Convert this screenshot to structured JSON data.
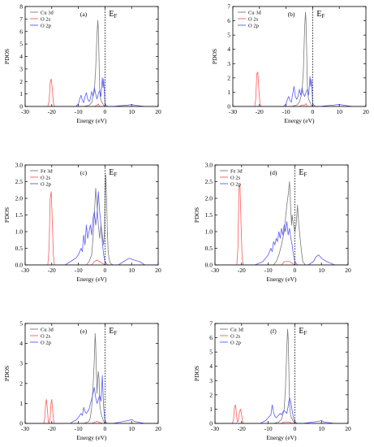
{
  "chart_data": [
    {
      "type": "line",
      "panel_label": "(a)",
      "xlabel": "Energy (eV)",
      "ylabel": "PDOS",
      "xlim": [
        -30,
        20
      ],
      "ylim": [
        0,
        8
      ],
      "xticks": [
        -30,
        -20,
        -10,
        0,
        10,
        20
      ],
      "yticks": [
        0,
        1,
        2,
        3,
        4,
        5,
        6,
        7,
        8
      ],
      "fermi_level": 0,
      "fermi_label": "E",
      "fermi_sub": "F",
      "legend_position": "top-left",
      "series": [
        {
          "name": "Cu 3d",
          "color": "#7a7a7a",
          "x": [
            -30,
            -8,
            -6,
            -5,
            -4.5,
            -4,
            -3.5,
            -3,
            -2.7,
            -2.5,
            -2.2,
            -2,
            -1.8,
            -1.5,
            -1,
            -0.5,
            0,
            20
          ],
          "y": [
            0,
            0,
            0.1,
            0.3,
            0.8,
            1.2,
            3.0,
            5.8,
            6.9,
            6.2,
            3.5,
            1.5,
            0.8,
            0.5,
            0.3,
            0.1,
            0,
            0
          ]
        },
        {
          "name": "O 2s",
          "color": "#ff5a5a",
          "x": [
            -30,
            -21.5,
            -21,
            -20.6,
            -20.2,
            -19.8,
            -19.4,
            -19,
            -4,
            -3,
            -2.5,
            -2,
            20
          ],
          "y": [
            0,
            0,
            0.4,
            1.9,
            2.2,
            1.4,
            0.3,
            0,
            0,
            0.1,
            0.2,
            0,
            0
          ]
        },
        {
          "name": "O 2p",
          "color": "#5a5aff",
          "x": [
            -30,
            -11,
            -10,
            -9.5,
            -9,
            -8.5,
            -8,
            -7.5,
            -7,
            -6.5,
            -6,
            -5.5,
            -5,
            -4.5,
            -4,
            -3.5,
            -3,
            -2.5,
            -2,
            -1.5,
            -1,
            -0.7,
            -0.5,
            -0.2,
            0,
            1,
            3,
            5,
            8,
            10,
            12,
            15,
            20
          ],
          "y": [
            0,
            0,
            0.2,
            0.6,
            0.9,
            0.5,
            0.3,
            0.8,
            1.1,
            0.6,
            0.4,
            0.6,
            1.2,
            0.8,
            1.5,
            1.0,
            0.6,
            1.0,
            1.3,
            0.8,
            2.3,
            1.5,
            2.2,
            1.0,
            0.2,
            0,
            0,
            0.05,
            0.1,
            0.15,
            0.08,
            0,
            0
          ]
        }
      ]
    },
    {
      "type": "line",
      "panel_label": "(b)",
      "xlabel": "Energy (eV)",
      "ylabel": "PDOS",
      "xlim": [
        -30,
        20
      ],
      "ylim": [
        0,
        7
      ],
      "xticks": [
        -30,
        -20,
        -10,
        0,
        10,
        20
      ],
      "yticks": [
        0,
        1,
        2,
        3,
        4,
        5,
        6,
        7
      ],
      "fermi_level": 0,
      "fermi_label": "E",
      "fermi_sub": "F",
      "legend_position": "top-left",
      "series": [
        {
          "name": "Cu 3d",
          "color": "#7a7a7a",
          "x": [
            -30,
            -8,
            -6,
            -5,
            -4.5,
            -4,
            -3.5,
            -3,
            -2.7,
            -2.5,
            -2.2,
            -2,
            -1.8,
            -1.5,
            -1,
            -0.5,
            0,
            20
          ],
          "y": [
            0,
            0,
            0.1,
            0.3,
            0.6,
            1.0,
            2.5,
            5.6,
            6.6,
            6.0,
            3.5,
            1.5,
            0.9,
            0.5,
            0.3,
            0.1,
            0,
            0
          ]
        },
        {
          "name": "O 2s",
          "color": "#ff5a5a",
          "x": [
            -30,
            -21.8,
            -21.4,
            -21,
            -20.6,
            -20.2,
            -19.8,
            -19.4,
            -5,
            -4,
            -3,
            -2.5,
            -2,
            20
          ],
          "y": [
            0,
            0,
            0.5,
            2.3,
            2.4,
            1.1,
            0.2,
            0,
            0,
            0.1,
            0.1,
            0.2,
            0,
            0
          ]
        },
        {
          "name": "O 2p",
          "color": "#5a5aff",
          "x": [
            -30,
            -11,
            -10,
            -9.5,
            -9,
            -8.5,
            -8,
            -7.5,
            -7,
            -6.5,
            -6,
            -5.5,
            -5,
            -4.5,
            -4,
            -3.5,
            -3,
            -2.5,
            -2,
            -1.5,
            -1,
            -0.7,
            -0.5,
            -0.2,
            0,
            1,
            3,
            5,
            8,
            10,
            12,
            15,
            20
          ],
          "y": [
            0,
            0,
            0.2,
            0.5,
            0.7,
            0.4,
            0.3,
            0.9,
            1.4,
            0.7,
            0.5,
            0.7,
            1.2,
            0.8,
            1.3,
            0.9,
            0.7,
            1.0,
            1.2,
            0.8,
            2.1,
            1.4,
            1.9,
            1.0,
            0.2,
            0,
            0,
            0.05,
            0.1,
            0.15,
            0.08,
            0,
            0
          ]
        }
      ]
    },
    {
      "type": "line",
      "panel_label": "(c)",
      "xlabel": "Energy (eV)",
      "ylabel": "PDOS",
      "xlim": [
        -30,
        20
      ],
      "ylim": [
        0,
        3.0
      ],
      "xticks": [
        -30,
        -20,
        -10,
        0,
        10,
        20
      ],
      "yticks": [
        0.0,
        0.5,
        1.0,
        1.5,
        2.0,
        2.5,
        3.0
      ],
      "fermi_level": 0,
      "fermi_label": "E",
      "fermi_sub": "F",
      "legend_position": "top-left",
      "series": [
        {
          "name": "Fe 3d",
          "color": "#7a7a7a",
          "x": [
            -30,
            -7,
            -6,
            -5,
            -4.5,
            -4,
            -3.5,
            -3,
            -2.5,
            -2,
            -1.5,
            -1,
            -0.5,
            -0.2,
            0,
            0.3,
            0.6,
            0.9,
            1.2,
            1.5,
            2,
            3,
            20
          ],
          "y": [
            0,
            0,
            0.1,
            0.3,
            0.8,
            1.5,
            2.3,
            1.8,
            1.2,
            0.8,
            1.2,
            0.9,
            0.6,
            1.0,
            2.0,
            2.7,
            2.0,
            1.0,
            0.4,
            0.2,
            0.05,
            0,
            0
          ]
        },
        {
          "name": "O 2s",
          "color": "#ff5a5a",
          "x": [
            -30,
            -21.5,
            -21,
            -20.6,
            -20.2,
            -19.8,
            -19.4,
            -19,
            -5,
            -4,
            -3,
            -2,
            -1,
            0,
            20
          ],
          "y": [
            0,
            0,
            0.5,
            2.0,
            2.2,
            1.3,
            0.3,
            0,
            0,
            0.1,
            0.15,
            0.1,
            0.05,
            0,
            0
          ]
        },
        {
          "name": "O 2p",
          "color": "#5a5aff",
          "x": [
            -30,
            -15,
            -13,
            -12,
            -11,
            -10,
            -9,
            -8.5,
            -8,
            -7.5,
            -7,
            -6.5,
            -6,
            -5.5,
            -5,
            -4.5,
            -4,
            -3.5,
            -3,
            -2.5,
            -2,
            -1.5,
            -1,
            -0.5,
            0,
            1,
            3,
            5,
            7,
            9,
            11,
            13,
            15,
            20
          ],
          "y": [
            0,
            0,
            0.1,
            0.15,
            0.2,
            0.3,
            0.5,
            0.4,
            0.9,
            0.6,
            1.2,
            0.8,
            1.0,
            1.2,
            0.9,
            1.4,
            1.6,
            1.2,
            1.5,
            2.2,
            1.6,
            1.2,
            0.7,
            0.3,
            0.1,
            0,
            0,
            0,
            0.1,
            0.2,
            0.15,
            0.1,
            0,
            0
          ]
        }
      ]
    },
    {
      "type": "line",
      "panel_label": "(d)",
      "xlabel": "Energy (eV)",
      "ylabel": "PDOS",
      "xlim": [
        -30,
        20
      ],
      "ylim": [
        0,
        3.0
      ],
      "xticks": [
        -30,
        -20,
        -10,
        0,
        10,
        20
      ],
      "yticks": [
        0.0,
        0.5,
        1.0,
        1.5,
        2.0,
        2.5,
        3.0
      ],
      "fermi_level": 0,
      "fermi_label": "E",
      "fermi_sub": "F",
      "legend_position": "top-left",
      "series": [
        {
          "name": "Fe 3d",
          "color": "#7a7a7a",
          "x": [
            -30,
            -8,
            -7,
            -6,
            -5,
            -4,
            -3.5,
            -3,
            -2.5,
            -2,
            -1.8,
            -1.5,
            -1.2,
            -1,
            -0.5,
            0,
            0.5,
            1,
            1.5,
            2,
            2.5,
            3,
            4,
            20
          ],
          "y": [
            0,
            0,
            0.1,
            0.3,
            0.6,
            1.0,
            1.4,
            1.8,
            2.1,
            2.5,
            2.2,
            1.6,
            1.2,
            1.5,
            1.2,
            1.0,
            1.2,
            1.8,
            1.2,
            0.8,
            0.4,
            0.1,
            0,
            0
          ]
        },
        {
          "name": "O 2s",
          "color": "#ff5a5a",
          "x": [
            -30,
            -21.8,
            -21.4,
            -21,
            -20.6,
            -20.2,
            -19.8,
            -19.4,
            -5,
            -4,
            -3,
            -2,
            -1,
            0,
            20
          ],
          "y": [
            0,
            0,
            0.5,
            2.3,
            2.4,
            1.2,
            0.2,
            0,
            0,
            0.1,
            0.1,
            0.1,
            0.05,
            0,
            0
          ]
        },
        {
          "name": "O 2p",
          "color": "#5a5aff",
          "x": [
            -30,
            -15,
            -12,
            -11,
            -10,
            -9,
            -8.5,
            -8,
            -7.5,
            -7,
            -6.5,
            -6,
            -5.5,
            -5,
            -4.5,
            -4,
            -3.5,
            -3,
            -2.5,
            -2,
            -1.5,
            -1,
            -0.5,
            0,
            1,
            3,
            5,
            7,
            8,
            9,
            10,
            12,
            15,
            20
          ],
          "y": [
            0,
            0,
            0.1,
            0.2,
            0.3,
            0.5,
            0.4,
            0.7,
            0.6,
            0.8,
            0.7,
            1.0,
            0.8,
            1.1,
            0.9,
            1.2,
            1.0,
            1.3,
            0.9,
            1.1,
            0.8,
            0.6,
            0.3,
            0.1,
            0,
            0,
            0,
            0.1,
            0.25,
            0.3,
            0.2,
            0.1,
            0,
            0
          ]
        }
      ]
    },
    {
      "type": "line",
      "panel_label": "(e)",
      "xlabel": "Energy (eV)",
      "ylabel": "PDOS",
      "xlim": [
        -30,
        20
      ],
      "ylim": [
        0,
        5
      ],
      "xticks": [
        -30,
        -20,
        -10,
        0,
        10,
        20
      ],
      "yticks": [
        0,
        1,
        2,
        3,
        4,
        5
      ],
      "fermi_level": 0,
      "fermi_label": "E",
      "fermi_sub": "F",
      "legend_position": "top-left",
      "series": [
        {
          "name": "Cu 3d",
          "color": "#7a7a7a",
          "x": [
            -30,
            -8,
            -6,
            -5.5,
            -5,
            -4.5,
            -4,
            -3.7,
            -3.5,
            -3.2,
            -3,
            -2.8,
            -2.5,
            -2.2,
            -2,
            -1.5,
            -1,
            -0.5,
            0,
            20
          ],
          "y": [
            0,
            0,
            0.1,
            0.3,
            0.8,
            1.8,
            3.2,
            4.5,
            4.0,
            2.5,
            1.5,
            2.0,
            2.6,
            2.2,
            1.0,
            0.5,
            0.3,
            0.1,
            0,
            0
          ]
        },
        {
          "name": "O 2s",
          "color": "#ff5a5a",
          "x": [
            -30,
            -23,
            -22.6,
            -22.3,
            -22,
            -21.7,
            -21.3,
            -21,
            -20.6,
            -20.3,
            -20,
            -19.7,
            -19.3,
            -19,
            -5,
            -4,
            -3,
            -2,
            -1,
            20
          ],
          "y": [
            0,
            0,
            0.3,
            1.0,
            1.2,
            0.8,
            0.1,
            0,
            0.3,
            1.0,
            1.2,
            0.7,
            0.1,
            0,
            0,
            0.05,
            0.1,
            0.05,
            0,
            0
          ]
        },
        {
          "name": "O 2p",
          "color": "#5a5aff",
          "x": [
            -30,
            -13,
            -12,
            -11,
            -10,
            -9,
            -8.5,
            -8,
            -7.5,
            -7,
            -6.5,
            -6,
            -5.5,
            -5,
            -4.5,
            -4,
            -3.5,
            -3,
            -2.5,
            -2,
            -1.5,
            -1,
            -0.5,
            0,
            1,
            3,
            5,
            7,
            9,
            10,
            11,
            13,
            15,
            20
          ],
          "y": [
            0,
            0,
            0.1,
            0.15,
            0.3,
            0.5,
            0.4,
            0.8,
            0.6,
            0.5,
            0.6,
            0.7,
            1.0,
            1.2,
            1.5,
            1.8,
            1.3,
            1.0,
            1.2,
            1.4,
            1.1,
            2.4,
            0.8,
            0.1,
            0,
            0,
            0.05,
            0.1,
            0.15,
            0.2,
            0.1,
            0.05,
            0,
            0
          ]
        }
      ]
    },
    {
      "type": "line",
      "panel_label": "(f)",
      "xlabel": "Energy (eV)",
      "ylabel": "PDOS",
      "xlim": [
        -30,
        20
      ],
      "ylim": [
        0,
        7
      ],
      "xticks": [
        -30,
        -20,
        -10,
        0,
        10,
        20
      ],
      "yticks": [
        0,
        1,
        2,
        3,
        4,
        5,
        6,
        7
      ],
      "fermi_level": 0,
      "fermi_label": "E",
      "fermi_sub": "F",
      "legend_position": "top-left",
      "series": [
        {
          "name": "Cu 3d",
          "color": "#7a7a7a",
          "x": [
            -30,
            -8,
            -6,
            -5,
            -4.5,
            -4,
            -3.5,
            -3,
            -2.7,
            -2.5,
            -2.2,
            -2,
            -1.8,
            -1.5,
            -1,
            -0.5,
            0,
            20
          ],
          "y": [
            0,
            0,
            0.1,
            0.3,
            0.6,
            1.0,
            2.5,
            5.4,
            6.6,
            6.0,
            3.5,
            1.5,
            0.9,
            0.5,
            0.3,
            0.1,
            0,
            0
          ]
        },
        {
          "name": "O 2s",
          "color": "#ff5a5a",
          "x": [
            -30,
            -23.5,
            -23,
            -22.7,
            -22.3,
            -22,
            -21.6,
            -21.2,
            -20.8,
            -20.4,
            -20,
            -19.6,
            -19.2,
            -5,
            -4,
            -3,
            -2,
            -1,
            20
          ],
          "y": [
            0,
            0,
            0.3,
            1.1,
            1.3,
            0.8,
            0.1,
            0.2,
            0.8,
            1.0,
            0.6,
            0.1,
            0,
            0,
            0.1,
            0.1,
            0.1,
            0,
            0
          ]
        },
        {
          "name": "O 2p",
          "color": "#5a5aff",
          "x": [
            -30,
            -13,
            -12,
            -11,
            -10,
            -9,
            -8.5,
            -8,
            -7.5,
            -7,
            -6.5,
            -6,
            -5.5,
            -5,
            -4.5,
            -4,
            -3.5,
            -3,
            -2.5,
            -2,
            -1.5,
            -1,
            -0.5,
            0,
            1,
            3,
            5,
            7,
            9,
            10,
            11,
            13,
            15,
            20
          ],
          "y": [
            0,
            0,
            0.1,
            0.2,
            0.4,
            0.6,
            1.3,
            0.8,
            0.5,
            0.4,
            0.5,
            0.6,
            0.7,
            0.6,
            0.8,
            0.9,
            0.8,
            0.7,
            1.2,
            1.8,
            1.5,
            0.9,
            0.4,
            0.1,
            0,
            0,
            0.05,
            0.1,
            0.15,
            0.2,
            0.1,
            0.05,
            0,
            0
          ]
        }
      ]
    }
  ]
}
